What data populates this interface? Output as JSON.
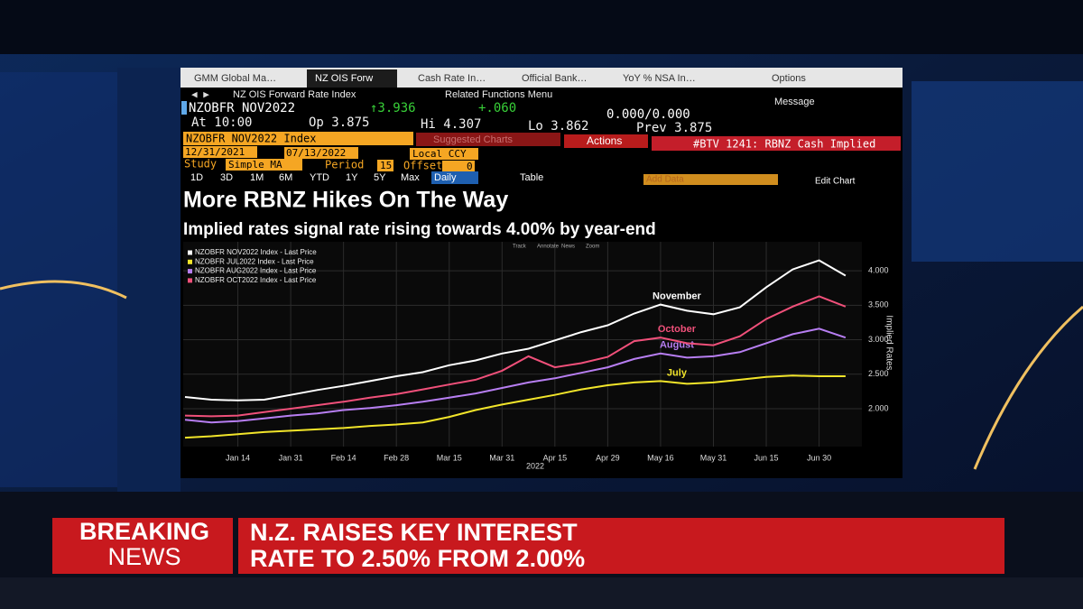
{
  "tabs": [
    "GMM Global Ma…",
    "NZ OIS Forw",
    "Cash Rate In…",
    "Official Bank…",
    "YoY % NSA In…"
  ],
  "options": "Options",
  "toolbar": {
    "security": "NZ OIS Forward Rate Index",
    "menu": "Related Functions Menu",
    "message": "Message"
  },
  "quote": {
    "ticker": "NZOBFR NOV2022",
    "last": "↑3.936",
    "change": "+.060",
    "bidask": "0.000/0.000",
    "at": "At 10:00",
    "open": "Op 3.875",
    "high": "Hi 4.307",
    "low": "Lo 3.862",
    "prev": "Prev 3.875"
  },
  "controls": {
    "index": "NZOBFR NOV2022 Index",
    "suggested": "Suggested Charts",
    "actions": "Actions",
    "btv": "#BTV 1241: RBNZ Cash Implied",
    "start": "12/31/2021",
    "end": "07/13/2022",
    "currency": "Local CCY",
    "study": "Study",
    "study_value": "Simple MA",
    "period": "Period",
    "period_value": "15",
    "offset": "Offset",
    "offset_value": "0",
    "ranges": [
      "1D",
      "3D",
      "1M",
      "6M",
      "YTD",
      "1Y",
      "5Y",
      "Max"
    ],
    "frequency": "Daily",
    "table": "Table",
    "add_data": "Add Data",
    "edit_chart": "Edit Chart"
  },
  "chart_data": {
    "type": "line",
    "title": "More RBNZ Hikes On The Way",
    "subtitle": "Implied rates signal rate rising towards 4.00% by year-end",
    "tools": [
      "Track",
      "Annotate",
      "News",
      "Zoom"
    ],
    "ylabel": "Implied Rates",
    "xlabel": "2022",
    "categories": [
      null,
      null,
      "Jan 14",
      null,
      "Jan 31",
      null,
      "Feb 14",
      null,
      "Feb 28",
      null,
      "Mar 15",
      null,
      "Mar 31",
      null,
      "Apr 15",
      null,
      "Apr 29",
      null,
      "May 16",
      null,
      "May 31",
      null,
      "Jun 15",
      null,
      "Jun 30",
      null
    ],
    "ylim": [
      1.45,
      4.42
    ],
    "yticks": [
      {
        "value": 2,
        "label": "2.000"
      },
      {
        "value": 2.5,
        "label": "2.500"
      },
      {
        "value": 3,
        "label": "3.000"
      },
      {
        "value": 3.5,
        "label": "3.500"
      },
      {
        "value": 4,
        "label": "4.000"
      }
    ],
    "grid": true,
    "legend": "top-left",
    "series": [
      {
        "name": "NZOBFR NOV2022 Index - Last Price",
        "label": "November",
        "color": "#ffffff",
        "values": [
          2.17,
          2.13,
          2.12,
          2.13,
          2.2,
          2.27,
          2.33,
          2.4,
          2.47,
          2.53,
          2.63,
          2.7,
          2.8,
          2.87,
          2.99,
          3.11,
          3.21,
          3.38,
          3.51,
          3.42,
          3.37,
          3.47,
          3.76,
          4.02,
          4.15,
          3.93
        ]
      },
      {
        "name": "NZOBFR JUL2022 Index - Last Price",
        "label": "July",
        "color": "#f2e52a",
        "values": [
          1.58,
          1.6,
          1.63,
          1.66,
          1.68,
          1.7,
          1.72,
          1.75,
          1.77,
          1.8,
          1.88,
          1.98,
          2.06,
          2.13,
          2.2,
          2.28,
          2.34,
          2.38,
          2.4,
          2.36,
          2.38,
          2.42,
          2.46,
          2.48,
          2.47,
          2.47
        ]
      },
      {
        "name": "NZOBFR AUG2022 Index - Last Price",
        "label": "August",
        "color": "#b77ef2",
        "values": [
          1.84,
          1.8,
          1.82,
          1.86,
          1.9,
          1.93,
          1.98,
          2.01,
          2.05,
          2.1,
          2.16,
          2.22,
          2.3,
          2.38,
          2.44,
          2.52,
          2.6,
          2.72,
          2.8,
          2.74,
          2.76,
          2.82,
          2.95,
          3.08,
          3.16,
          3.03
        ]
      },
      {
        "name": "NZOBFR OCT2022 Index - Last Price",
        "label": "October",
        "color": "#f0507a",
        "values": [
          1.9,
          1.89,
          1.9,
          1.95,
          2.0,
          2.05,
          2.1,
          2.16,
          2.21,
          2.28,
          2.35,
          2.42,
          2.55,
          2.76,
          2.6,
          2.66,
          2.75,
          2.98,
          3.03,
          2.95,
          2.92,
          3.05,
          3.3,
          3.48,
          3.63,
          3.48
        ]
      }
    ]
  },
  "breaking": {
    "label1": "BREAKING",
    "label2": "NEWS",
    "line1": "N.Z. RAISES KEY INTEREST",
    "line2": "RATE TO 2.50% FROM 2.00%"
  }
}
